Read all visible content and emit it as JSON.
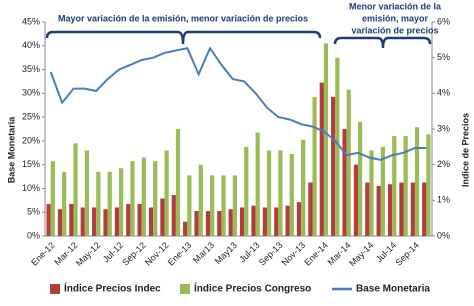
{
  "chart_data": {
    "type": "bar-line",
    "categories": [
      "Ene-12",
      null,
      "Mar-12",
      null,
      "May-12",
      null,
      "Jul-12",
      null,
      "Sep-12",
      null,
      "Nov-12",
      null,
      "Ene-13",
      null,
      "Mar13",
      null,
      "May13",
      null,
      "Jul-13",
      null,
      "Sep-13",
      null,
      "Nov-13",
      null,
      "Ene-14",
      null,
      "Mar-14",
      null,
      "May-14",
      null,
      "Jul-14",
      null,
      "Sep-14",
      null
    ],
    "series": [
      {
        "name": "Índice Precios Indec",
        "color": "#b13e3a",
        "type": "bar",
        "axis": "y2",
        "values": [
          0.9,
          0.75,
          0.9,
          0.8,
          0.8,
          0.75,
          0.8,
          0.9,
          0.9,
          0.8,
          1.05,
          1.15,
          0.4,
          0.7,
          0.7,
          0.7,
          0.75,
          0.8,
          0.85,
          0.8,
          0.8,
          0.85,
          0.95,
          1.5,
          4.3,
          3.9,
          3.0,
          2.0,
          1.5,
          1.4,
          1.45,
          1.5,
          1.5,
          1.5
        ]
      },
      {
        "name": "Índice Precios Congreso",
        "color": "#9bbb59",
        "type": "bar",
        "axis": "y2",
        "values": [
          2.1,
          1.8,
          2.6,
          2.4,
          1.8,
          1.8,
          1.9,
          2.1,
          2.2,
          2.1,
          2.4,
          3.0,
          1.7,
          2.0,
          1.7,
          1.7,
          1.7,
          2.5,
          2.9,
          2.4,
          2.4,
          2.3,
          2.7,
          3.9,
          5.4,
          5.0,
          4.1,
          3.2,
          2.4,
          2.5,
          2.8,
          2.8,
          3.05,
          2.85
        ]
      },
      {
        "name": "Base Monetaria",
        "color": "#4a7ebb",
        "type": "line",
        "values": [
          34.5,
          28,
          31,
          31,
          30.5,
          33,
          35,
          36,
          37,
          37.5,
          38.5,
          39,
          39.5,
          34,
          39.5,
          36,
          33,
          32.5,
          30,
          27,
          25,
          24.5,
          23.5,
          23,
          22,
          20,
          17,
          17.5,
          16.5,
          16,
          17,
          17.5,
          18.5,
          18.5
        ]
      }
    ],
    "ylabel": "Base Monetaria",
    "y2label": "Indice de Precios",
    "ylim": [
      0,
      45
    ],
    "yticks": [
      {
        "value": 0,
        "label": "0%"
      },
      {
        "value": 5,
        "label": "5%"
      },
      {
        "value": 10,
        "label": "10%"
      },
      {
        "value": 15,
        "label": "15%"
      },
      {
        "value": 20,
        "label": "20%"
      },
      {
        "value": 25,
        "label": "25%"
      },
      {
        "value": 30,
        "label": "30%"
      },
      {
        "value": 35,
        "label": "35%"
      },
      {
        "value": 40,
        "label": "40%"
      },
      {
        "value": 45,
        "label": "45%"
      }
    ],
    "y2lim": [
      0,
      6
    ],
    "y2ticks": [
      {
        "value": 0,
        "label": "0%"
      },
      {
        "value": 1,
        "label": "1%"
      },
      {
        "value": 2,
        "label": "2%"
      },
      {
        "value": 3,
        "label": "3%"
      },
      {
        "value": 4,
        "label": "4%"
      },
      {
        "value": 5,
        "label": "5%"
      },
      {
        "value": 6,
        "label": "6%"
      }
    ],
    "annotations": [
      [
        "Mayor variación de la emisión, menor variación de precios"
      ],
      [
        "Menor variación de la",
        "emisión, mayor",
        "variación de precios"
      ]
    ],
    "legend": "bottom"
  }
}
